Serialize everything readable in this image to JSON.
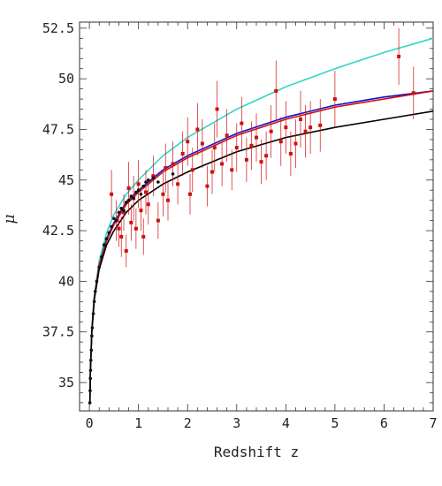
{
  "chart_data": {
    "type": "scatter",
    "xlabel": "Redshift z",
    "ylabel": "μ",
    "xlim": [
      -0.2,
      7.0
    ],
    "ylim": [
      33.6,
      52.8
    ],
    "xticks": [
      0,
      1,
      2,
      3,
      4,
      5,
      6,
      7
    ],
    "yticks": [
      35,
      37.5,
      40,
      42.5,
      45,
      47.5,
      50,
      52.5
    ],
    "ytick_labels": [
      "35",
      "37.5",
      "40",
      "42.5",
      "45",
      "47.5",
      "50",
      "52.5"
    ],
    "grid": false,
    "legend": "none",
    "curves": [
      {
        "color": "#30d8c8",
        "points": [
          [
            0.01,
            34.0
          ],
          [
            0.02,
            35.6
          ],
          [
            0.05,
            37.7
          ],
          [
            0.1,
            39.3
          ],
          [
            0.2,
            41.0
          ],
          [
            0.35,
            42.4
          ],
          [
            0.5,
            43.3
          ],
          [
            0.75,
            44.3
          ],
          [
            1.0,
            45.0
          ],
          [
            1.5,
            46.2
          ],
          [
            2.0,
            47.1
          ],
          [
            3.0,
            48.5
          ],
          [
            4.0,
            49.6
          ],
          [
            5.0,
            50.5
          ],
          [
            6.0,
            51.3
          ],
          [
            7.0,
            52.0
          ]
        ]
      },
      {
        "color": "#1010d0",
        "points": [
          [
            0.01,
            34.0
          ],
          [
            0.02,
            35.5
          ],
          [
            0.05,
            37.6
          ],
          [
            0.1,
            39.2
          ],
          [
            0.2,
            40.8
          ],
          [
            0.35,
            42.1
          ],
          [
            0.5,
            42.9
          ],
          [
            0.75,
            43.9
          ],
          [
            1.0,
            44.5
          ],
          [
            1.5,
            45.5
          ],
          [
            2.0,
            46.2
          ],
          [
            3.0,
            47.3
          ],
          [
            4.0,
            48.1
          ],
          [
            5.0,
            48.7
          ],
          [
            6.0,
            49.1
          ],
          [
            7.0,
            49.4
          ]
        ]
      },
      {
        "color": "#d01010",
        "points": [
          [
            0.01,
            34.0
          ],
          [
            0.02,
            35.5
          ],
          [
            0.05,
            37.6
          ],
          [
            0.1,
            39.2
          ],
          [
            0.2,
            40.8
          ],
          [
            0.35,
            42.0
          ],
          [
            0.5,
            42.8
          ],
          [
            0.75,
            43.8
          ],
          [
            1.0,
            44.4
          ],
          [
            1.5,
            45.4
          ],
          [
            2.0,
            46.1
          ],
          [
            3.0,
            47.2
          ],
          [
            4.0,
            48.0
          ],
          [
            5.0,
            48.6
          ],
          [
            6.0,
            49.0
          ],
          [
            7.0,
            49.4
          ]
        ]
      },
      {
        "color": "#000000",
        "points": [
          [
            0.01,
            34.0
          ],
          [
            0.02,
            35.5
          ],
          [
            0.05,
            37.5
          ],
          [
            0.1,
            39.1
          ],
          [
            0.2,
            40.6
          ],
          [
            0.35,
            41.8
          ],
          [
            0.5,
            42.5
          ],
          [
            0.75,
            43.4
          ],
          [
            1.0,
            44.0
          ],
          [
            1.5,
            44.8
          ],
          [
            2.0,
            45.4
          ],
          [
            3.0,
            46.4
          ],
          [
            4.0,
            47.1
          ],
          [
            5.0,
            47.6
          ],
          [
            6.0,
            48.0
          ],
          [
            7.0,
            48.4
          ]
        ]
      }
    ],
    "series": [
      {
        "color": "#d01010",
        "marker": "square",
        "points": [
          [
            0.45,
            44.3,
            1.2
          ],
          [
            0.55,
            43.0,
            1.0
          ],
          [
            0.6,
            42.6,
            0.9
          ],
          [
            0.65,
            42.2,
            1.0
          ],
          [
            0.7,
            43.4,
            0.9
          ],
          [
            0.75,
            41.5,
            0.8
          ],
          [
            0.8,
            44.6,
            1.3
          ],
          [
            0.85,
            42.9,
            0.9
          ],
          [
            0.9,
            44.1,
            1.1
          ],
          [
            0.95,
            42.6,
            1.0
          ],
          [
            1.0,
            44.8,
            1.2
          ],
          [
            1.05,
            43.5,
            1.0
          ],
          [
            1.1,
            42.2,
            0.9
          ],
          [
            1.15,
            44.4,
            1.1
          ],
          [
            1.2,
            43.8,
            1.0
          ],
          [
            1.3,
            45.2,
            1.0
          ],
          [
            1.4,
            43.0,
            0.9
          ],
          [
            1.5,
            44.3,
            1.1
          ],
          [
            1.55,
            45.6,
            1.2
          ],
          [
            1.6,
            44.0,
            1.0
          ],
          [
            1.7,
            45.8,
            1.1
          ],
          [
            1.8,
            44.8,
            1.0
          ],
          [
            1.9,
            46.3,
            1.1
          ],
          [
            2.0,
            46.9,
            1.2
          ],
          [
            2.05,
            44.3,
            1.0
          ],
          [
            2.1,
            45.5,
            1.1
          ],
          [
            2.2,
            47.5,
            1.3
          ],
          [
            2.3,
            46.8,
            1.2
          ],
          [
            2.4,
            44.7,
            1.0
          ],
          [
            2.5,
            45.4,
            1.1
          ],
          [
            2.55,
            46.6,
            1.2
          ],
          [
            2.6,
            48.5,
            1.4
          ],
          [
            2.7,
            45.8,
            1.1
          ],
          [
            2.8,
            47.2,
            1.3
          ],
          [
            2.9,
            45.5,
            1.0
          ],
          [
            3.0,
            46.6,
            1.2
          ],
          [
            3.1,
            47.8,
            1.3
          ],
          [
            3.2,
            46.0,
            1.1
          ],
          [
            3.3,
            46.7,
            1.2
          ],
          [
            3.4,
            47.1,
            1.2
          ],
          [
            3.5,
            45.9,
            1.1
          ],
          [
            3.6,
            46.2,
            1.2
          ],
          [
            3.7,
            47.4,
            1.3
          ],
          [
            3.8,
            49.4,
            1.5
          ],
          [
            3.9,
            46.9,
            1.2
          ],
          [
            4.0,
            47.6,
            1.3
          ],
          [
            4.1,
            46.3,
            1.1
          ],
          [
            4.2,
            46.8,
            1.2
          ],
          [
            4.3,
            48.0,
            1.4
          ],
          [
            4.4,
            47.4,
            1.3
          ],
          [
            4.5,
            47.6,
            1.3
          ],
          [
            4.7,
            47.7,
            1.3
          ],
          [
            5.0,
            49.0,
            1.4
          ],
          [
            6.3,
            51.1,
            1.4
          ],
          [
            6.6,
            49.3,
            1.3
          ]
        ]
      },
      {
        "color": "#111111",
        "marker": "dot",
        "points": [
          [
            0.01,
            34.0
          ],
          [
            0.015,
            34.6
          ],
          [
            0.02,
            35.2
          ],
          [
            0.025,
            35.6
          ],
          [
            0.03,
            36.1
          ],
          [
            0.04,
            36.6
          ],
          [
            0.05,
            37.3
          ],
          [
            0.06,
            37.7
          ],
          [
            0.08,
            38.4
          ],
          [
            0.1,
            39.0
          ],
          [
            0.12,
            39.5
          ],
          [
            0.15,
            40.0
          ],
          [
            0.2,
            40.7
          ],
          [
            0.25,
            41.2
          ],
          [
            0.3,
            41.8
          ],
          [
            0.35,
            42.1
          ],
          [
            0.4,
            42.4
          ],
          [
            0.45,
            42.7
          ],
          [
            0.5,
            43.1
          ],
          [
            0.55,
            43.0
          ],
          [
            0.6,
            43.4
          ],
          [
            0.65,
            43.6
          ],
          [
            0.7,
            43.5
          ],
          [
            0.75,
            43.9
          ],
          [
            0.8,
            44.0
          ],
          [
            0.85,
            44.2
          ],
          [
            0.9,
            44.1
          ],
          [
            0.95,
            44.4
          ],
          [
            1.0,
            44.5
          ],
          [
            1.05,
            44.3
          ],
          [
            1.1,
            44.7
          ],
          [
            1.15,
            44.9
          ],
          [
            1.2,
            45.0
          ],
          [
            1.3,
            45.1
          ],
          [
            1.4,
            44.9
          ],
          [
            1.7,
            45.3
          ]
        ]
      }
    ]
  }
}
